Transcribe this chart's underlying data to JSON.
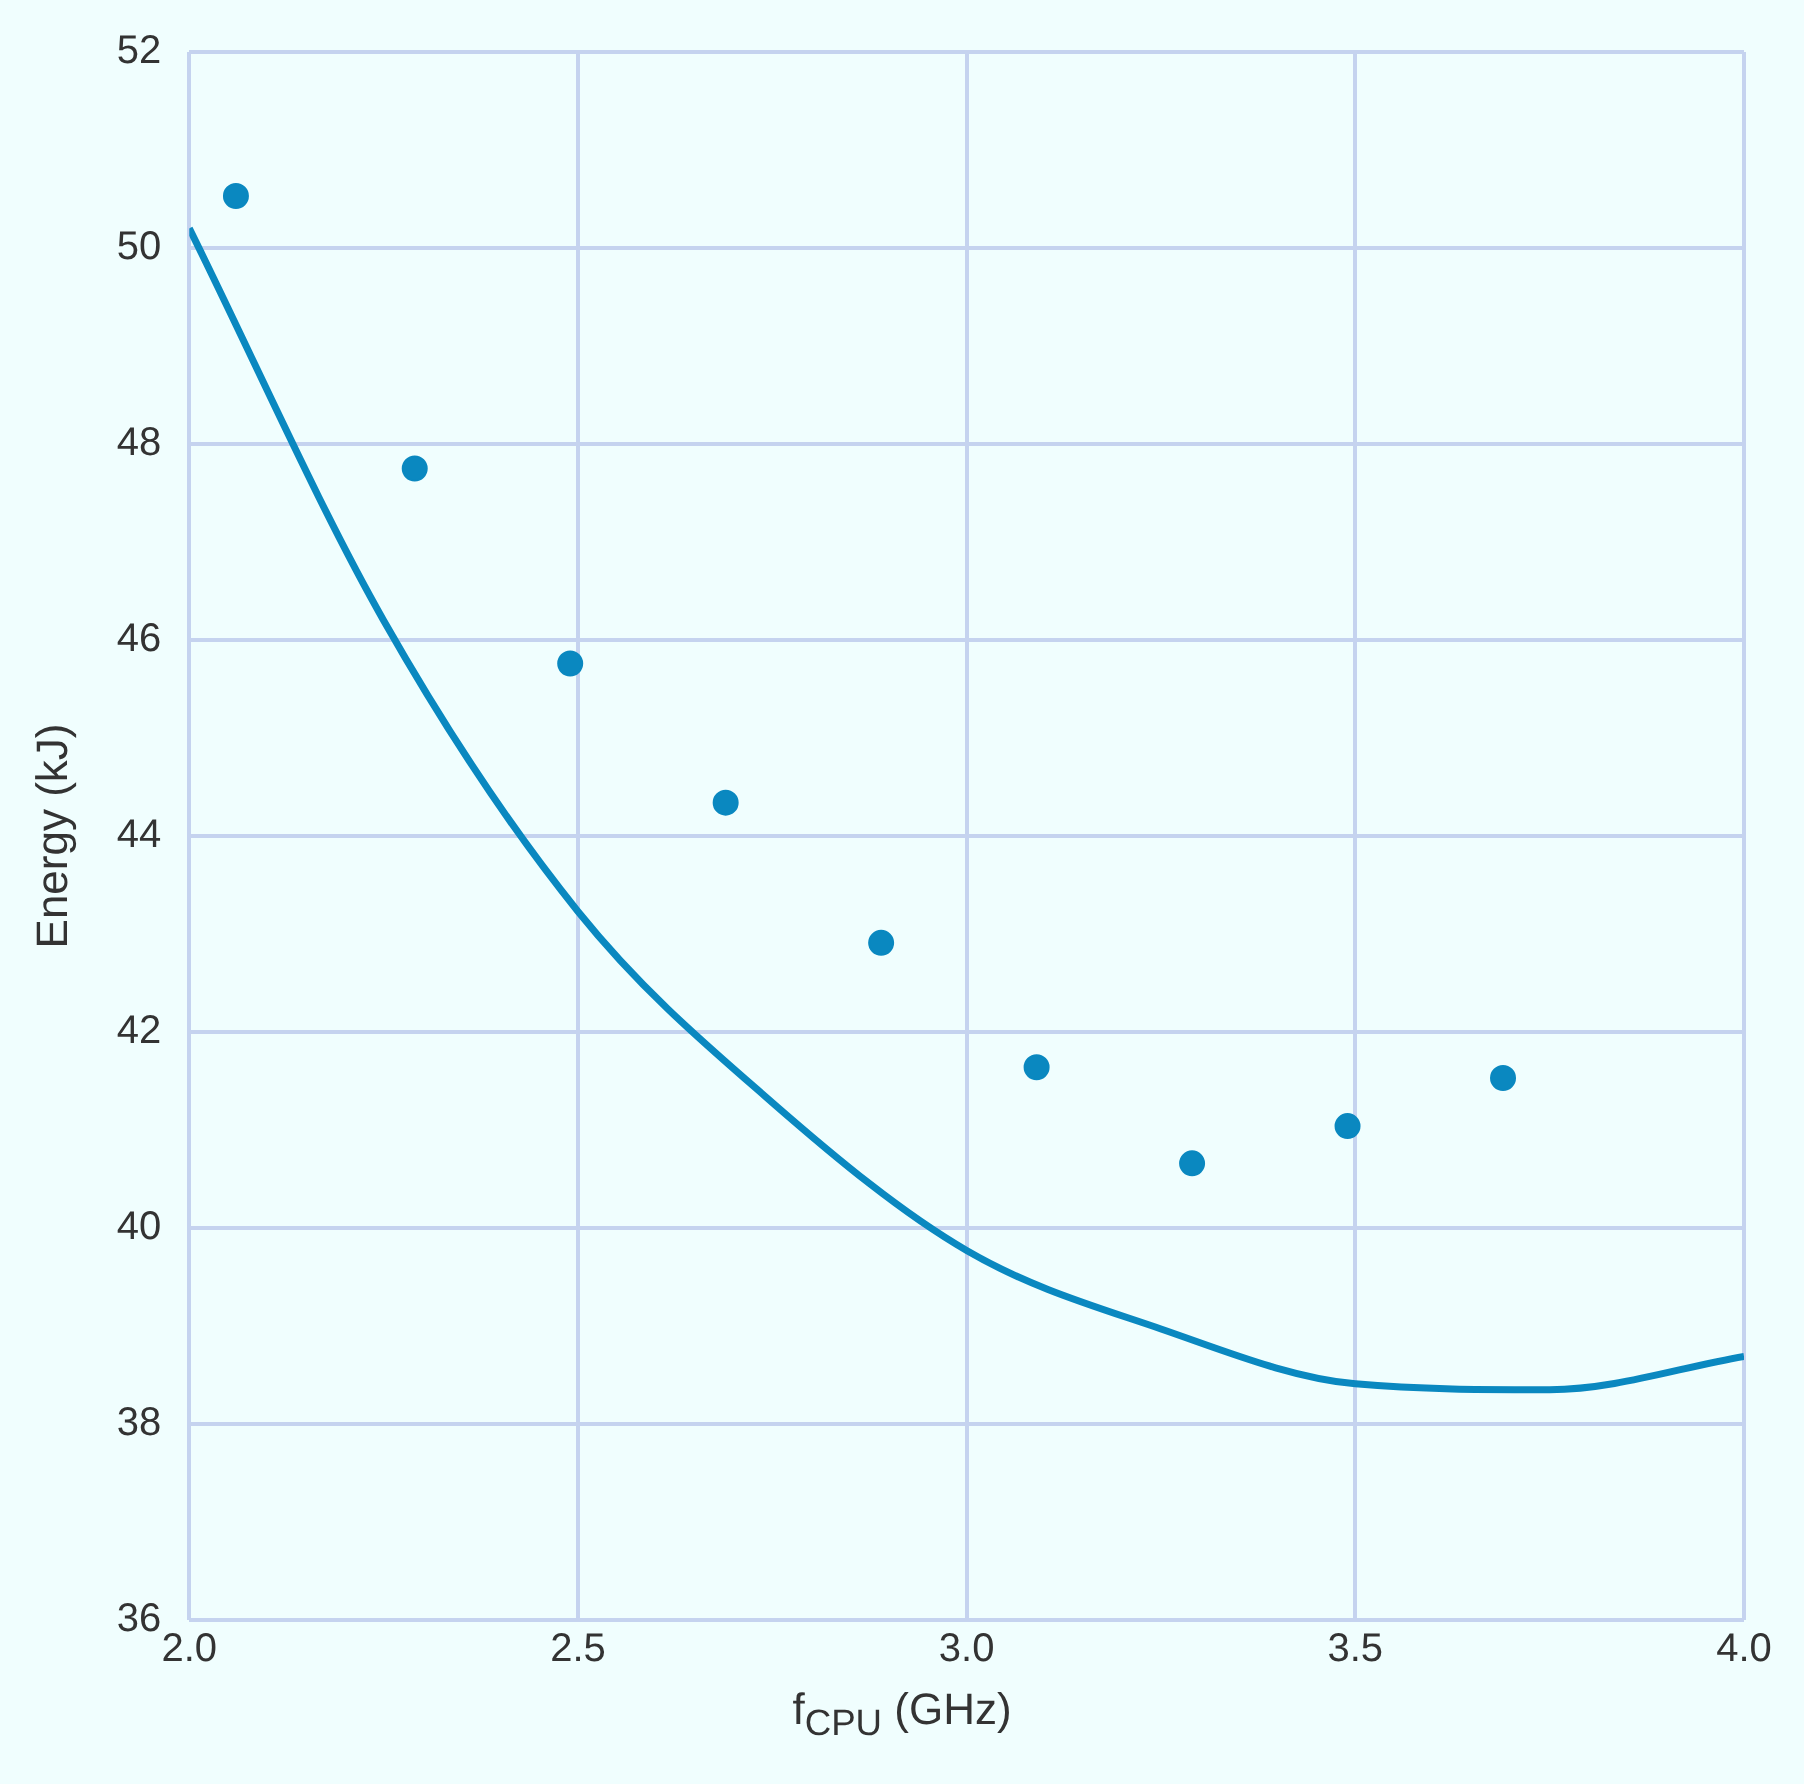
{
  "chart_data": {
    "type": "scatter",
    "xlabel": "f$_{CPU}$ (GHz)",
    "ylabel": "Energy (kJ)",
    "xlim": [
      2.0,
      4.0
    ],
    "xticks": [
      {
        "value": 2.0,
        "label": "2.0"
      },
      {
        "value": 2.5,
        "label": "2.5"
      },
      {
        "value": 3.0,
        "label": "3.0"
      },
      {
        "value": 3.5,
        "label": "3.5"
      },
      {
        "value": 4.0,
        "label": "4.0"
      }
    ],
    "ylim": [
      36,
      52
    ],
    "yticks": [
      36,
      38,
      40,
      42,
      44,
      46,
      48,
      50,
      52
    ],
    "grid": true,
    "marker": "circle",
    "series": [
      {
        "type": "scatter",
        "color": "#0a88c0",
        "x": [
          2.06,
          2.29,
          2.49,
          2.69,
          2.89,
          3.09,
          3.29,
          3.49,
          3.69
        ],
        "values": [
          50.53,
          47.75,
          45.76,
          44.34,
          42.91,
          41.64,
          40.66,
          41.04,
          41.53
        ]
      },
      {
        "type": "line",
        "color": "#0a88c0",
        "marker": "none",
        "x": [
          2.0,
          2.25,
          2.5,
          2.75,
          3.0,
          3.25,
          3.5,
          3.75,
          4.0
        ],
        "values": [
          50.2,
          46.2,
          43.23,
          41.28,
          39.77,
          38.97,
          38.41,
          38.35,
          38.69
        ]
      }
    ]
  }
}
